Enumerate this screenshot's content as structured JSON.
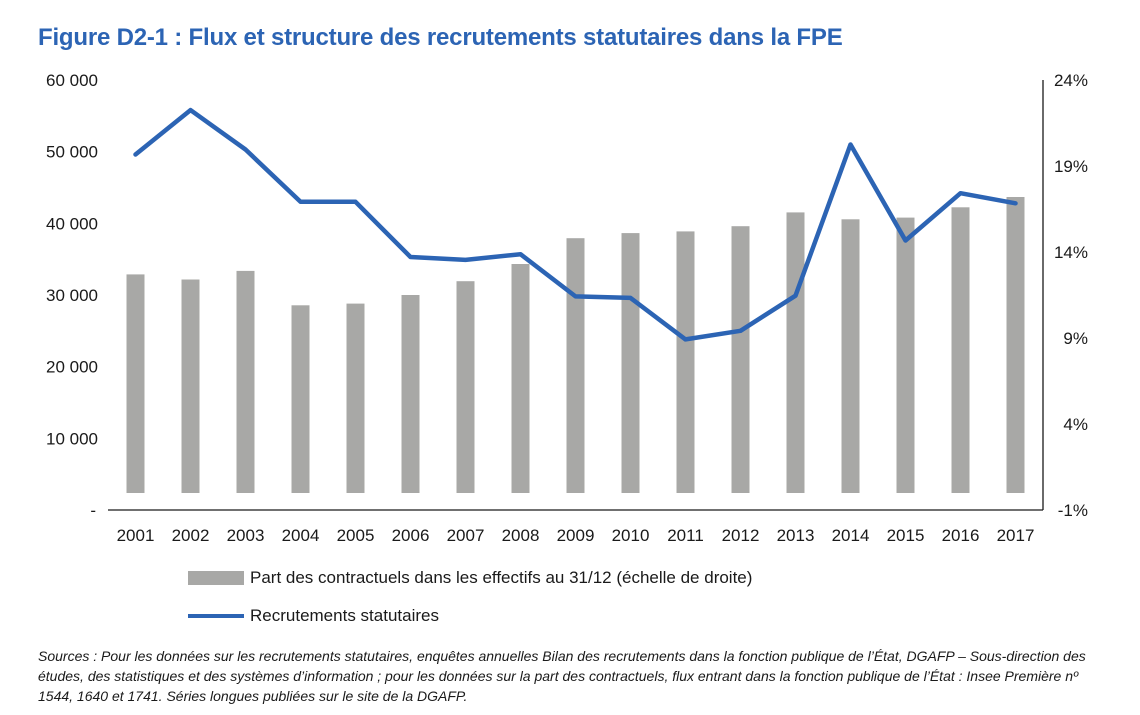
{
  "title": "Figure D2-1 : Flux et structure des recrutements statutaires dans la FPE",
  "chart_data": {
    "type": "bar+line",
    "categories": [
      "2001",
      "2002",
      "2003",
      "2004",
      "2005",
      "2006",
      "2007",
      "2008",
      "2009",
      "2010",
      "2011",
      "2012",
      "2013",
      "2014",
      "2015",
      "2016",
      "2017"
    ],
    "series": [
      {
        "name": "Part des contractuels dans les effectifs au 31/12 (échelle de droite)",
        "type": "bar",
        "axis": "right",
        "color": "#a8a8a6",
        "values": [
          12.7,
          12.4,
          12.9,
          10.9,
          11.0,
          11.5,
          12.3,
          13.3,
          14.8,
          15.1,
          15.2,
          15.5,
          16.3,
          15.9,
          16.0,
          16.6,
          17.2
        ]
      },
      {
        "name": "Recrutements statutaires",
        "type": "line",
        "axis": "left",
        "color": "#2c64b4",
        "values": [
          49600,
          55800,
          50300,
          43000,
          43000,
          35300,
          34900,
          35700,
          29800,
          29600,
          23800,
          25000,
          29900,
          51000,
          37600,
          44200,
          42800
        ]
      }
    ],
    "y_left": {
      "ticks": [
        0,
        10000,
        20000,
        30000,
        40000,
        50000,
        60000
      ],
      "tick_labels": [
        "-",
        "10 000",
        "20 000",
        "30 000",
        "40 000",
        "50 000",
        "60 000"
      ],
      "range": [
        0,
        60000
      ]
    },
    "y_right": {
      "ticks": [
        -1,
        4,
        9,
        14,
        19,
        24
      ],
      "tick_labels": [
        "-1%",
        "4%",
        "9%",
        "14%",
        "19%",
        "24%"
      ],
      "range": [
        -1,
        24
      ]
    },
    "grid": false,
    "legend_position": "bottom"
  },
  "legend": {
    "bar_label": "Part des contractuels dans les effectifs au 31/12 (échelle de droite)",
    "line_label": "Recrutements statutaires"
  },
  "sources": "Sources : Pour les données sur les recrutements statutaires, enquêtes annuelles Bilan des recrutements dans la fonction publique de l’État, DGAFP – Sous-direction des études, des statistiques et des systèmes d’information ; pour les données sur la part des contractuels, flux entrant dans la fonction publique de l’État : Insee Première nº 1544, 1640 et 1741. Séries longues publiées sur le site de la DGAFP."
}
